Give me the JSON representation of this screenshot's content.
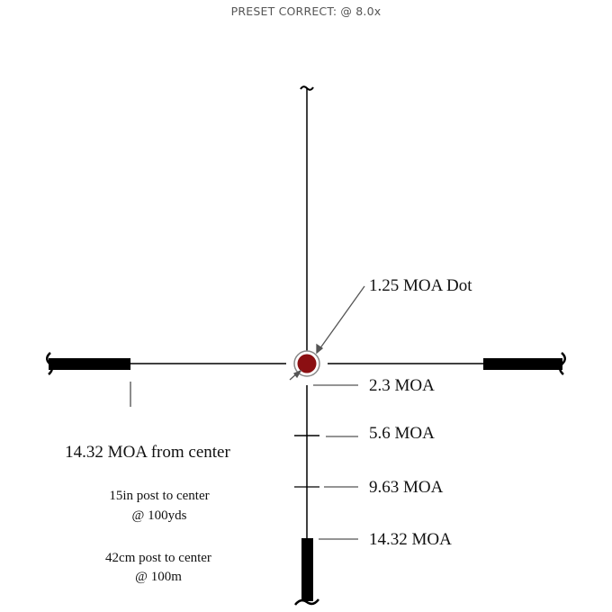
{
  "title": "PRESET CORRECT: @ 8.0x",
  "labels": {
    "dot": "1.25 MOA Dot",
    "mark1": "2.3 MOA",
    "mark2": "5.6 MOA",
    "mark3": "9.63 MOA",
    "mark4": "14.32 MOA",
    "post_moa": "14.32 MOA from center",
    "post_in_1": "15in post to center",
    "post_in_2": "@ 100yds",
    "post_cm_1": "42cm post to center",
    "post_cm_2": "@ 100m"
  },
  "colors": {
    "dot": "#8b0f12",
    "line": "#000000",
    "leader": "#555555"
  }
}
